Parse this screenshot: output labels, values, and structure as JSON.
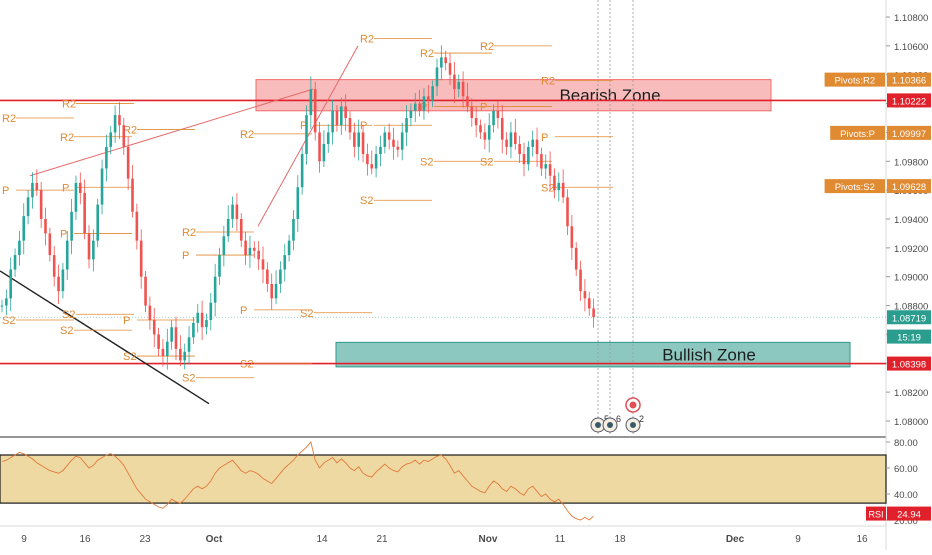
{
  "chart_data": [
    {
      "type": "candlestick",
      "instrument_note": "",
      "y_ticks": [
        1.108,
        1.106,
        1.104,
        1.102,
        1.1,
        1.098,
        1.096,
        1.094,
        1.092,
        1.09,
        1.088,
        1.086,
        1.084,
        1.082,
        1.08
      ],
      "y_tick_labels": [
        "1.10800",
        "1.10600",
        "1.10400",
        "1.10200",
        "1.10000",
        "1.09800",
        "1.09600",
        "1.09400",
        "1.09200",
        "1.09000",
        "1.08800",
        "1.08600",
        "1.08400",
        "1.08200",
        "1.08000"
      ],
      "x_tick_labels": [
        "9",
        "16",
        "23",
        "Oct",
        "14",
        "21",
        "Nov",
        "11",
        "18",
        "Dec",
        "9",
        "16"
      ],
      "ylim": [
        1.0792,
        1.1095
      ],
      "grid": false,
      "close_path": [
        1.088,
        1.0885,
        1.0905,
        1.0915,
        1.0925,
        1.0942,
        1.0955,
        1.0965,
        1.096,
        1.094,
        1.093,
        1.0915,
        1.09,
        1.089,
        1.0905,
        1.0925,
        1.0945,
        1.0965,
        1.0958,
        1.093,
        1.0912,
        1.0925,
        1.095,
        1.0975,
        1.099,
        1.1,
        1.1012,
        1.1005,
        1.099,
        1.0968,
        1.0945,
        1.0925,
        1.09,
        1.088,
        1.087,
        1.086,
        1.085,
        1.0845,
        1.0855,
        1.0865,
        1.085,
        1.0842,
        1.0848,
        1.0858,
        1.0868,
        1.0875,
        1.0865,
        1.087,
        1.0882,
        1.09,
        1.0915,
        1.0928,
        1.094,
        1.095,
        1.094,
        1.0925,
        1.0915,
        1.092,
        1.0918,
        1.0912,
        1.0905,
        1.0895,
        1.0885,
        1.0895,
        1.0905,
        1.0915,
        1.0925,
        1.094,
        1.0962,
        1.0985,
        1.1012,
        1.103,
        1.1,
        1.098,
        1.0992,
        1.1,
        1.1015,
        1.1005,
        1.1018,
        1.101,
        1.1,
        1.099,
        1.1,
        1.0985,
        1.0978,
        1.0975,
        1.0985,
        1.099,
        1.1,
        1.0995,
        1.099,
        1.0988,
        1.1,
        1.101,
        1.1015,
        1.102,
        1.1015,
        1.1025,
        1.1022,
        1.1032,
        1.1045,
        1.1052,
        1.1048,
        1.104,
        1.103,
        1.1035,
        1.1025,
        1.1018,
        1.101,
        1.1005,
        1.1,
        1.0995,
        1.1005,
        1.1015,
        1.101,
        1.0995,
        1.099,
        1.1,
        1.0992,
        1.0985,
        1.0978,
        1.099,
        1.0995,
        1.0985,
        1.0975,
        1.0978,
        1.097,
        1.096,
        1.0965,
        1.0955,
        1.0935,
        1.092,
        1.0905,
        1.089,
        1.0885,
        1.0878,
        1.0872
      ],
      "zones": [
        {
          "label": "Bearish Zone",
          "y_top": 1.10366,
          "y_bottom": 1.1015,
          "color": "#f26b6b"
        },
        {
          "label": "Bullish Zone",
          "y_top": 1.08545,
          "y_bottom": 1.08375,
          "color": "#2e9a8c"
        }
      ],
      "horizontal_levels": [
        1.10222,
        1.08398
      ],
      "pivot_labels": [
        {
          "label": "R2",
          "y": 1.101
        },
        {
          "label": "P",
          "y": 1.096
        },
        {
          "label": "S2",
          "y": 1.087
        },
        {
          "label": "R2",
          "y": 1.0997
        },
        {
          "label": "P",
          "y": 1.093
        },
        {
          "label": "S2",
          "y": 1.0863
        },
        {
          "label": "R2",
          "y": 1.102
        },
        {
          "label": "P",
          "y": 1.0962
        },
        {
          "label": "S2",
          "y": 1.0874
        },
        {
          "label": "R2",
          "y": 1.1002
        },
        {
          "label": "P",
          "y": 1.087
        },
        {
          "label": "S2",
          "y": 1.0845
        },
        {
          "label": "R2",
          "y": 1.0931
        },
        {
          "label": "P",
          "y": 1.0915
        },
        {
          "label": "S2",
          "y": 1.083
        },
        {
          "label": "R2",
          "y": 1.0999
        },
        {
          "label": "P",
          "y": 1.0877
        },
        {
          "label": "S2",
          "y": 1.084
        },
        {
          "label": "R2",
          "y": 1.1095
        },
        {
          "label": "P",
          "y": 1.1005
        },
        {
          "label": "S2",
          "y": 1.0875
        },
        {
          "label": "R2",
          "y": 1.1065
        },
        {
          "label": "P",
          "y": 1.1005
        },
        {
          "label": "S2",
          "y": 1.0953
        },
        {
          "label": "R2",
          "y": 1.1055
        },
        {
          "label": "P",
          "y": 1.1018
        },
        {
          "label": "S2",
          "y": 1.098
        },
        {
          "label": "R2",
          "y": 1.106
        },
        {
          "label": "P",
          "y": 1.1018
        },
        {
          "label": "S2",
          "y": 1.098
        },
        {
          "label": "R2",
          "y": 1.1036
        },
        {
          "label": "P",
          "y": 1.0997
        },
        {
          "label": "S2",
          "y": 1.0962
        }
      ],
      "price_tags": [
        {
          "name": "Pivots:R2",
          "value": "1.10366",
          "y": 1.10366,
          "color": "#e08a32"
        },
        {
          "name": "",
          "value": "1.10222",
          "y": 1.10222,
          "color": "#e0202a"
        },
        {
          "name": "Pivots:P",
          "value": "1.09997",
          "y": 1.09997,
          "color": "#e08a32"
        },
        {
          "name": "Pivots:S2",
          "value": "1.09628",
          "y": 1.09628,
          "color": "#e08a32"
        },
        {
          "name": "",
          "value": "1.08719",
          "y": 1.08719,
          "color": "#2a9d8f"
        },
        {
          "name": "",
          "value": "15:19",
          "y": 1.08585,
          "color": "#2a9d8f"
        },
        {
          "name": "",
          "value": "1.08398",
          "y": 1.08398,
          "color": "#e0202a"
        }
      ],
      "event_markers": [
        "5",
        "6",
        "2"
      ]
    },
    {
      "type": "line",
      "name": "RSI",
      "y_ticks": [
        80,
        60,
        40,
        20
      ],
      "y_tick_labels": [
        "80.00",
        "60.00",
        "40.00",
        "20.00"
      ],
      "ylim": [
        17,
        85
      ],
      "band": [
        33,
        70
      ],
      "band_color": "#e8c97a",
      "current_label": "RSI",
      "current_value": "24.94",
      "values": [
        65,
        66,
        68,
        70,
        72,
        71,
        69,
        67,
        64,
        62,
        60,
        58,
        57,
        56,
        58,
        62,
        66,
        69,
        68,
        64,
        60,
        62,
        66,
        68,
        70,
        71,
        69,
        66,
        62,
        56,
        50,
        44,
        40,
        36,
        34,
        32,
        30,
        29,
        32,
        36,
        34,
        33,
        36,
        40,
        44,
        46,
        44,
        46,
        50,
        56,
        60,
        62,
        64,
        66,
        62,
        58,
        56,
        58,
        57,
        55,
        52,
        50,
        48,
        52,
        56,
        60,
        63,
        66,
        70,
        73,
        76,
        80,
        66,
        60,
        64,
        66,
        68,
        64,
        67,
        64,
        60,
        58,
        61,
        56,
        54,
        53,
        57,
        60,
        63,
        60,
        58,
        57,
        61,
        63,
        64,
        66,
        63,
        66,
        65,
        67,
        69,
        70,
        67,
        62,
        56,
        58,
        54,
        50,
        46,
        44,
        42,
        41,
        46,
        50,
        48,
        44,
        42,
        46,
        44,
        41,
        39,
        44,
        46,
        42,
        38,
        40,
        36,
        34,
        36,
        32,
        27,
        23,
        21,
        20,
        22,
        20,
        23
      ]
    }
  ],
  "chart_labels": {
    "pivot_r2_tag": "Pivots:R2",
    "pivot_p_tag": "Pivots:P",
    "pivot_s2_tag": "Pivots:S2"
  },
  "colors": {
    "up": "#26a69a",
    "down": "#ef5350",
    "pivot": "#e08a32",
    "red_line": "#e0202a",
    "axis_text": "#4a4a4a",
    "trendline": "#e66a6a"
  }
}
